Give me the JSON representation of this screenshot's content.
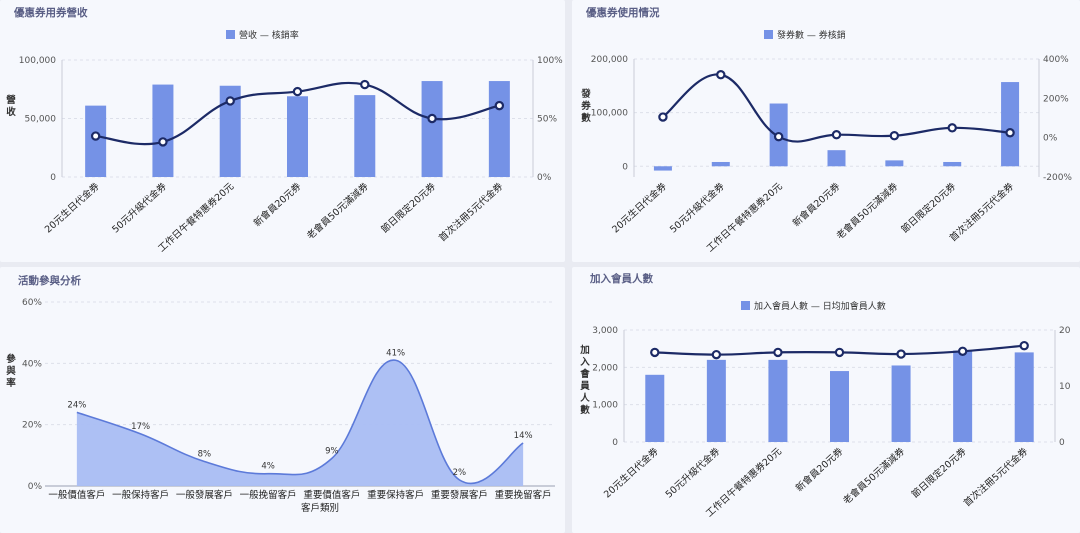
{
  "colors": {
    "bar": "#7592e6",
    "line": "#1c2a66",
    "area_fill": "#a9bdf3",
    "area_stroke": "#5c7ad9",
    "axis_text": "#555555",
    "grid": "#dde0ea"
  },
  "chart_data": [
    {
      "id": "p1",
      "type": "bar",
      "title": "優惠券用券營收",
      "legend_label": "營收 — 核銷率",
      "ylabel": "營收",
      "categories": [
        "20元生日代金券",
        "50元升級代金券",
        "工作日午餐特惠券20元",
        "新會員20元券",
        "老會員50元滿減券",
        "節日限定20元券",
        "首次注冊5元代金券"
      ],
      "series": [
        {
          "name": "營收",
          "kind": "bar",
          "axis": "left",
          "values": [
            61000,
            79000,
            78000,
            69000,
            70000,
            82000,
            82000
          ]
        },
        {
          "kind": "line",
          "axis": "right",
          "values": [
            35,
            30,
            65,
            73,
            79,
            50,
            61
          ]
        }
      ],
      "ylim": [
        0,
        100000
      ],
      "ylim_right": [
        0,
        100
      ],
      "yticks": [
        "0",
        "50,000",
        "100,000"
      ],
      "yticks_right": [
        "0%",
        "50%",
        "100%"
      ]
    },
    {
      "id": "p2",
      "type": "bar",
      "title": "優惠券使用情況",
      "legend_label": "發券數 — 券核銷",
      "ylabel": "發券數",
      "categories": [
        "20元生日代金券",
        "50元升級代金券",
        "工作日午餐特惠券20元",
        "新會員20元券",
        "老會員50元滿減券",
        "節日限定20元券",
        "首次注冊5元代金券"
      ],
      "series": [
        {
          "name": "發券數",
          "kind": "bar",
          "axis": "left",
          "values": [
            -8000,
            8000,
            117000,
            30000,
            11000,
            8000,
            157000
          ]
        },
        {
          "kind": "line",
          "axis": "right",
          "values": [
            105,
            320,
            5,
            15,
            10,
            50,
            25
          ]
        }
      ],
      "ylim": [
        -20000,
        200000
      ],
      "ylim_right": [
        -200,
        400
      ],
      "yticks": [
        "0",
        "100,000",
        "200,000"
      ],
      "yticks_right": [
        "-200%",
        "0%",
        "200%",
        "400%"
      ]
    },
    {
      "id": "p3",
      "type": "area",
      "title": "活動參與分析",
      "ylabel": "參與率",
      "xlabel": "客戶類別",
      "categories": [
        "一般價值客戶",
        "一般保持客戶",
        "一般發展客戶",
        "一般挽留客戶",
        "重要價值客戶",
        "重要保持客戶",
        "重要發展客戶",
        "重要挽留客戶"
      ],
      "values": [
        24,
        17,
        8,
        4,
        9,
        41,
        2,
        14
      ],
      "data_labels": [
        "24%",
        "17%",
        "8%",
        "4%",
        "9%",
        "41%",
        "2%",
        "14%"
      ],
      "ylim": [
        0,
        60
      ],
      "yticks": [
        "0%",
        "20%",
        "40%",
        "60%"
      ]
    },
    {
      "id": "p4",
      "type": "bar",
      "title": "加入會員人數",
      "legend_label": "加入會員人數 — 日均加會員人數",
      "ylabel": "加入會員人數",
      "categories": [
        "20元生日代金券",
        "50元升級代金券",
        "工作日午餐特惠券20元",
        "新會員20元券",
        "老會員50元滿減券",
        "節日限定20元券",
        "首次注冊5元代金券"
      ],
      "series": [
        {
          "name": "加入會員人數",
          "kind": "bar",
          "axis": "left",
          "values": [
            1800,
            2200,
            2200,
            1900,
            2050,
            2450,
            2400
          ]
        },
        {
          "kind": "line",
          "axis": "right",
          "values": [
            16,
            15.6,
            16,
            16,
            15.7,
            16.2,
            17.2
          ]
        }
      ],
      "ylim": [
        0,
        3000
      ],
      "ylim_right": [
        0,
        20
      ],
      "yticks": [
        "0",
        "1,000",
        "2,000",
        "3,000"
      ],
      "yticks_right": [
        "0",
        "10",
        "20"
      ]
    }
  ]
}
